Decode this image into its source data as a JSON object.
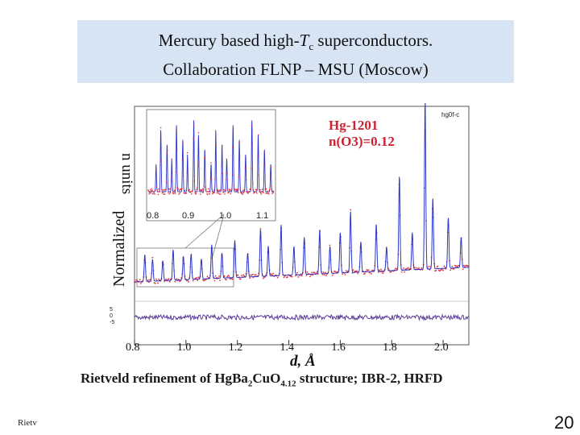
{
  "title": {
    "line1_pre": "Mercury based high-",
    "line1_T": "T",
    "line1_sub": "c",
    "line1_post": " superconductors.",
    "line2": "Collaboration FLNP – MSU (Moscow)"
  },
  "figure": {
    "ylabel": "Normalized",
    "ylabel_cut": "n units",
    "xlabel": "d, Å",
    "xticks": [
      "0.8",
      "1.0",
      "1.2",
      "1.4",
      "1.6",
      "1.8",
      "2.0"
    ],
    "file_tag": "hg0f-c",
    "inset_label1": "Hg-1201",
    "inset_label2": "n(O3)=0.12",
    "inset_xticks": [
      "0.8",
      "0.9",
      "1.0",
      "1.1"
    ],
    "diff_ticks": [
      "5",
      "0",
      "-5"
    ]
  },
  "chart_data": {
    "type": "line",
    "xlabel": "d, Å",
    "xlim": [
      0.8,
      2.1
    ],
    "series_colors": {
      "observed": "#e0303a",
      "calculated": "#2b35c8",
      "difference": "#5a3a9a"
    },
    "peaks": [
      {
        "d": 0.84,
        "h": 0.16
      },
      {
        "d": 0.87,
        "h": 0.13
      },
      {
        "d": 0.91,
        "h": 0.12
      },
      {
        "d": 0.95,
        "h": 0.18
      },
      {
        "d": 0.99,
        "h": 0.14
      },
      {
        "d": 1.02,
        "h": 0.15
      },
      {
        "d": 1.06,
        "h": 0.12
      },
      {
        "d": 1.1,
        "h": 0.2
      },
      {
        "d": 1.14,
        "h": 0.15
      },
      {
        "d": 1.19,
        "h": 0.22
      },
      {
        "d": 1.24,
        "h": 0.14
      },
      {
        "d": 1.29,
        "h": 0.28
      },
      {
        "d": 1.32,
        "h": 0.18
      },
      {
        "d": 1.37,
        "h": 0.3
      },
      {
        "d": 1.42,
        "h": 0.17
      },
      {
        "d": 1.46,
        "h": 0.22
      },
      {
        "d": 1.52,
        "h": 0.26
      },
      {
        "d": 1.56,
        "h": 0.16
      },
      {
        "d": 1.6,
        "h": 0.24
      },
      {
        "d": 1.64,
        "h": 0.36
      },
      {
        "d": 1.68,
        "h": 0.18
      },
      {
        "d": 1.74,
        "h": 0.28
      },
      {
        "d": 1.78,
        "h": 0.14
      },
      {
        "d": 1.83,
        "h": 0.56
      },
      {
        "d": 1.88,
        "h": 0.22
      },
      {
        "d": 1.93,
        "h": 1.0
      },
      {
        "d": 1.96,
        "h": 0.42
      },
      {
        "d": 2.02,
        "h": 0.3
      },
      {
        "d": 2.07,
        "h": 0.18
      }
    ]
  },
  "caption": {
    "pre": "Rietveld refinement of Hg",
    "ba": "Ba",
    "ba_sub": "2",
    "cu": "CuO",
    "o_sub": "4.12",
    "post": " structure; IBR-2, HRFD"
  },
  "footer": {
    "left": "Rietv",
    "page": "20"
  }
}
